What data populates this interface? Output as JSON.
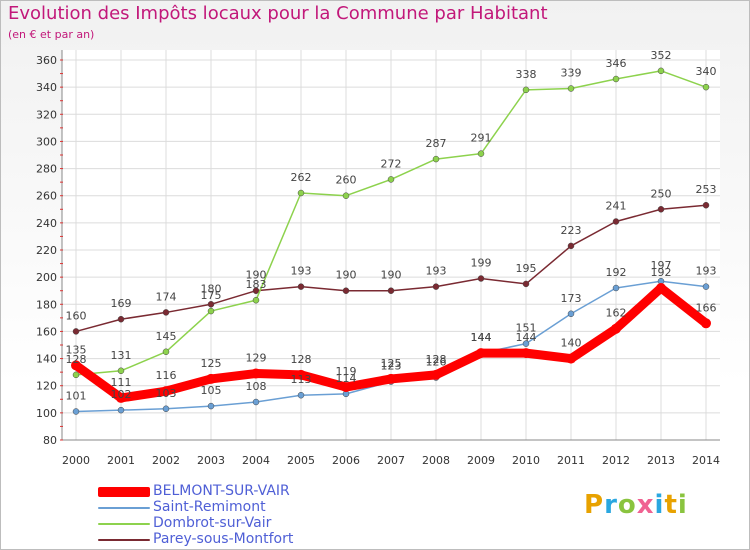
{
  "chart_data": {
    "type": "line",
    "title": "Evolution des Impôts locaux pour la Commune par Habitant",
    "subtitle": "(en € et par an)",
    "x": [
      "2000",
      "2001",
      "2002",
      "2003",
      "2004",
      "2005",
      "2006",
      "2007",
      "2008",
      "2009",
      "2010",
      "2011",
      "2012",
      "2013",
      "2014"
    ],
    "ylim": [
      80,
      360
    ],
    "yticks": [
      80,
      100,
      120,
      140,
      160,
      180,
      200,
      220,
      240,
      260,
      280,
      300,
      320,
      340,
      360
    ],
    "grid": true,
    "legend_position": "bottom-left",
    "series": [
      {
        "name": "BELMONT-SUR-VAIR",
        "color": "#ff0000",
        "values": [
          135,
          111,
          116,
          125,
          129,
          128,
          119,
          125,
          128,
          144,
          144,
          140,
          162,
          192,
          166
        ],
        "label_values": [
          135,
          111,
          116,
          125,
          129,
          128,
          119,
          125,
          128,
          144,
          144,
          140,
          162,
          192,
          166
        ]
      },
      {
        "name": "Saint-Remimont",
        "color": "#6a9fd4",
        "values": [
          101,
          102,
          103,
          105,
          108,
          113,
          114,
          123,
          126,
          144,
          151,
          173,
          192,
          197,
          193
        ],
        "label_values": [
          101,
          102,
          103,
          105,
          108,
          113,
          114,
          123,
          126,
          144,
          151,
          173,
          192,
          197,
          193
        ]
      },
      {
        "name": "Dombrot-sur-Vair",
        "color": "#8dd24d",
        "values": [
          128,
          131,
          145,
          175,
          183,
          262,
          260,
          272,
          287,
          291,
          338,
          339,
          346,
          352,
          340
        ],
        "label_values": [
          128,
          131,
          145,
          175,
          183,
          262,
          260,
          272,
          287,
          291,
          338,
          339,
          346,
          352,
          340
        ]
      },
      {
        "name": "Parey-sous-Montfort",
        "color": "#7a2a32",
        "values": [
          160,
          169,
          174,
          180,
          190,
          193,
          190,
          190,
          193,
          199,
          195,
          223,
          241,
          250,
          253
        ],
        "label_values": [
          160,
          169,
          174,
          180,
          190,
          193,
          190,
          190,
          193,
          199,
          195,
          223,
          241,
          250,
          253
        ]
      }
    ]
  },
  "legend": {
    "items": [
      {
        "label": "BELMONT-SUR-VAIR",
        "color": "#ff0000"
      },
      {
        "label": "Saint-Remimont",
        "color": "#6a9fd4"
      },
      {
        "label": "Dombrot-sur-Vair",
        "color": "#8dd24d"
      },
      {
        "label": "Parey-sous-Montfort",
        "color": "#7a2a32"
      }
    ]
  },
  "logo": {
    "text": "Proxiti",
    "letters": [
      {
        "ch": "P",
        "color": "#e8a200"
      },
      {
        "ch": "r",
        "color": "#2aa7e0"
      },
      {
        "ch": "o",
        "color": "#8ac43f"
      },
      {
        "ch": "x",
        "color": "#f06292"
      },
      {
        "ch": "i",
        "color": "#2aa7e0"
      },
      {
        "ch": "t",
        "color": "#e8a200"
      },
      {
        "ch": "i",
        "color": "#8ac43f"
      }
    ]
  }
}
